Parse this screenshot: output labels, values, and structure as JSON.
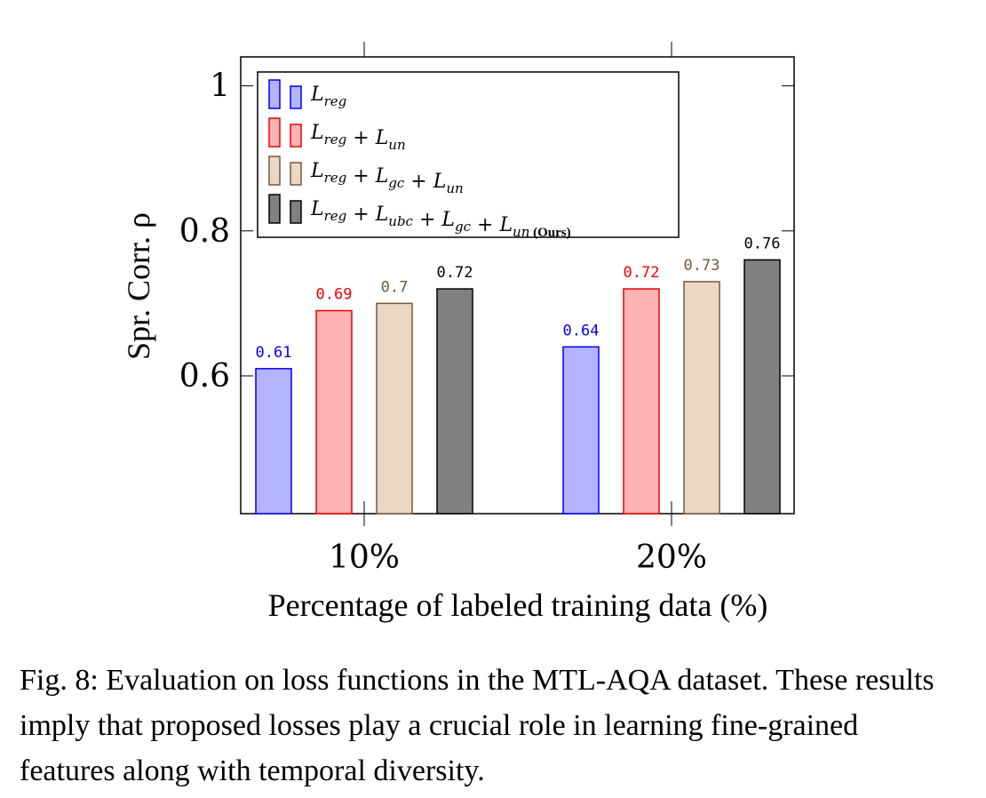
{
  "chart_data": {
    "type": "bar",
    "categories": [
      "10%",
      "20%"
    ],
    "series": [
      {
        "name": "L_reg",
        "values": [
          0.61,
          0.64
        ],
        "labels": [
          "0.61",
          "0.64"
        ],
        "fill": "#b3b3ff",
        "stroke": "#0000ee"
      },
      {
        "name": "L_reg + L_un",
        "values": [
          0.69,
          0.72
        ],
        "labels": [
          "0.69",
          "0.72"
        ],
        "fill": "#ffb3b3",
        "stroke": "#ee0000"
      },
      {
        "name": "L_reg + L_gc + L_un",
        "values": [
          0.7,
          0.73
        ],
        "labels": [
          "0.7",
          "0.73"
        ],
        "fill": "#ead8c3",
        "stroke": "#7a5638"
      },
      {
        "name": "L_reg + L_ubc + L_gc + L_un (Ours)",
        "values": [
          0.72,
          0.76
        ],
        "labels": [
          "0.72",
          "0.76"
        ],
        "fill": "#808080",
        "stroke": "#000000"
      }
    ],
    "ylabel": "Spr. Corr. ρ",
    "xlabel": "Percentage of labeled training data (%)",
    "ylim": [
      0.41,
      1.04
    ],
    "yticks": [
      0.6,
      0.8,
      1
    ],
    "ytick_labels": [
      "0.6",
      "0.8",
      "1"
    ],
    "legend_position": "top-left",
    "legend_suffix": "(Ours)",
    "grid": false
  },
  "caption": "Fig. 8: Evaluation on loss functions in the MTL-AQA dataset. These results imply that proposed losses play a crucial role in learning fine-grained features along with temporal diversity."
}
